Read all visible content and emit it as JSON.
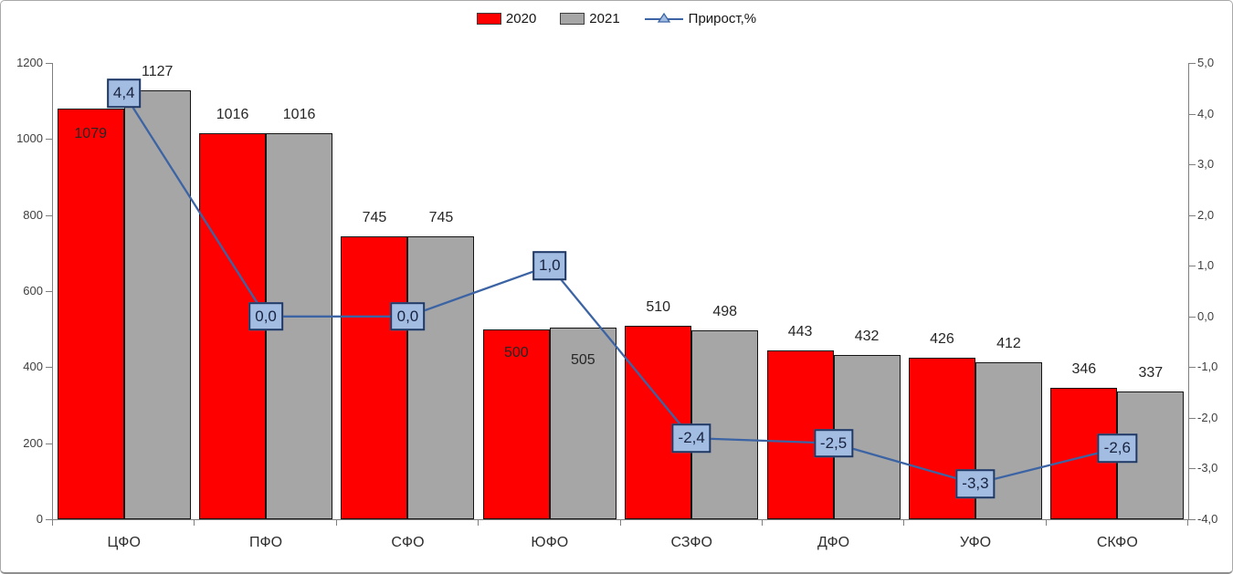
{
  "chart_data": {
    "type": "combo-bar-line",
    "title": "",
    "categories": [
      "ЦФО",
      "ПФО",
      "СФО",
      "ЮФО",
      "СЗФО",
      "ДФО",
      "УФО",
      "СКФО"
    ],
    "series": [
      {
        "name": "2020",
        "type": "bar",
        "axis": "left",
        "color": "#FF0000",
        "values": [
          1079,
          1016,
          745,
          500,
          510,
          443,
          426,
          346
        ],
        "labels": [
          "1079",
          "1016",
          "745",
          "500",
          "510",
          "443",
          "426",
          "346"
        ]
      },
      {
        "name": "2021",
        "type": "bar",
        "axis": "left",
        "color": "#A6A6A6",
        "values": [
          1127,
          1016,
          745,
          505,
          498,
          432,
          412,
          337
        ],
        "labels": [
          "1127",
          "1016",
          "745",
          "505",
          "498",
          "432",
          "412",
          "337"
        ]
      },
      {
        "name": "Прирост,%",
        "type": "line",
        "axis": "right",
        "color": "#3C64A4",
        "marker": "triangle",
        "values": [
          4.4,
          0.0,
          0.0,
          1.0,
          -2.4,
          -2.5,
          -3.3,
          -2.6
        ],
        "labels": [
          "4,4",
          "0,0",
          "0,0",
          "1,0",
          "-2,4",
          "-2,5",
          "-3,3",
          "-2,6"
        ],
        "label_box": {
          "fill": "#A3BCE2",
          "border": "#1F3864",
          "text_color": "#17223F"
        }
      }
    ],
    "left_axis": {
      "min": 0,
      "max": 1200,
      "step": 200,
      "tick_labels": [
        "0",
        "200",
        "400",
        "600",
        "800",
        "1000",
        "1200"
      ]
    },
    "right_axis": {
      "min": -4,
      "max": 5,
      "step": 1,
      "tick_labels": [
        "-4,0",
        "-3,0",
        "-2,0",
        "-1,0",
        "0,0",
        "1,0",
        "2,0",
        "3,0",
        "4,0",
        "5,0"
      ]
    },
    "legend_position": "top-center",
    "gridlines": false,
    "bar_border_color": "#141414",
    "axis_color": "#7F7F7F",
    "inside_value_labels": {
      "2020": [
        0,
        3
      ],
      "2021": [
        3
      ]
    }
  }
}
